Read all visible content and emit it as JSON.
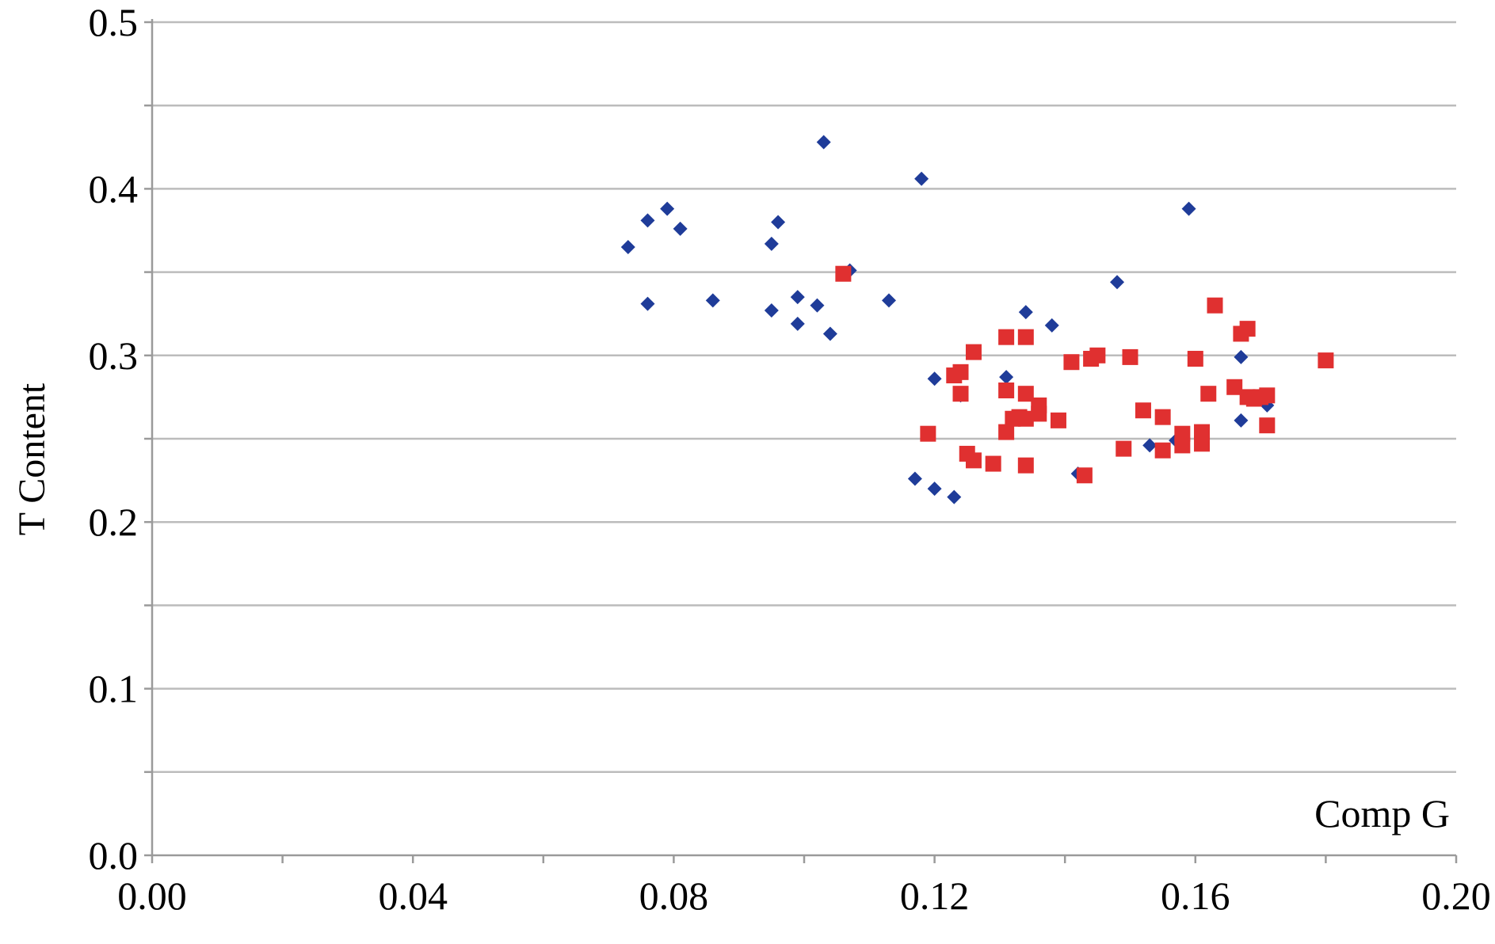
{
  "chart_data": {
    "type": "scatter",
    "title": "",
    "xlabel": "Comp G",
    "ylabel": "T Content",
    "xlim": [
      0.0,
      0.2
    ],
    "ylim": [
      0.0,
      0.5
    ],
    "x_ticks": [
      0.0,
      0.04,
      0.08,
      0.12,
      0.16,
      0.2
    ],
    "x_tick_labels": [
      "0.00",
      "0.04",
      "0.08",
      "0.12",
      "0.16",
      "0.20"
    ],
    "y_ticks": [
      0.0,
      0.1,
      0.2,
      0.3,
      0.4,
      0.5
    ],
    "y_tick_labels": [
      "0.0",
      "0.1",
      "0.2",
      "0.3",
      "0.4",
      "0.5"
    ],
    "grid": true,
    "legend": "none",
    "colors": {
      "series_1": "#1f3c99",
      "series_2": "#e03030",
      "grid": "#bcbcbc",
      "axis": "#9a9a9a"
    },
    "series": [
      {
        "marker": "diamond",
        "color": "#1f3c99",
        "points": [
          [
            0.073,
            0.365
          ],
          [
            0.076,
            0.381
          ],
          [
            0.079,
            0.388
          ],
          [
            0.081,
            0.376
          ],
          [
            0.076,
            0.331
          ],
          [
            0.086,
            0.333
          ],
          [
            0.095,
            0.367
          ],
          [
            0.096,
            0.38
          ],
          [
            0.095,
            0.327
          ],
          [
            0.099,
            0.335
          ],
          [
            0.099,
            0.319
          ],
          [
            0.102,
            0.33
          ],
          [
            0.103,
            0.428
          ],
          [
            0.104,
            0.313
          ],
          [
            0.107,
            0.351
          ],
          [
            0.113,
            0.333
          ],
          [
            0.118,
            0.406
          ],
          [
            0.117,
            0.226
          ],
          [
            0.12,
            0.22
          ],
          [
            0.12,
            0.286
          ],
          [
            0.123,
            0.215
          ],
          [
            0.124,
            0.276
          ],
          [
            0.131,
            0.287
          ],
          [
            0.134,
            0.326
          ],
          [
            0.138,
            0.318
          ],
          [
            0.142,
            0.229
          ],
          [
            0.148,
            0.344
          ],
          [
            0.153,
            0.246
          ],
          [
            0.157,
            0.249
          ],
          [
            0.159,
            0.388
          ],
          [
            0.167,
            0.299
          ],
          [
            0.167,
            0.261
          ],
          [
            0.171,
            0.27
          ]
        ]
      },
      {
        "marker": "square",
        "color": "#e03030",
        "points": [
          [
            0.106,
            0.349
          ],
          [
            0.119,
            0.253
          ],
          [
            0.123,
            0.288
          ],
          [
            0.124,
            0.29
          ],
          [
            0.124,
            0.277
          ],
          [
            0.125,
            0.241
          ],
          [
            0.126,
            0.237
          ],
          [
            0.126,
            0.302
          ],
          [
            0.129,
            0.235
          ],
          [
            0.131,
            0.311
          ],
          [
            0.131,
            0.279
          ],
          [
            0.131,
            0.254
          ],
          [
            0.132,
            0.262
          ],
          [
            0.133,
            0.263
          ],
          [
            0.134,
            0.262
          ],
          [
            0.134,
            0.311
          ],
          [
            0.134,
            0.277
          ],
          [
            0.134,
            0.234
          ],
          [
            0.136,
            0.27
          ],
          [
            0.136,
            0.265
          ],
          [
            0.139,
            0.261
          ],
          [
            0.141,
            0.296
          ],
          [
            0.143,
            0.228
          ],
          [
            0.144,
            0.298
          ],
          [
            0.145,
            0.3
          ],
          [
            0.149,
            0.244
          ],
          [
            0.15,
            0.299
          ],
          [
            0.152,
            0.267
          ],
          [
            0.155,
            0.263
          ],
          [
            0.155,
            0.243
          ],
          [
            0.158,
            0.246
          ],
          [
            0.158,
            0.253
          ],
          [
            0.16,
            0.298
          ],
          [
            0.161,
            0.247
          ],
          [
            0.161,
            0.254
          ],
          [
            0.162,
            0.277
          ],
          [
            0.163,
            0.33
          ],
          [
            0.166,
            0.281
          ],
          [
            0.167,
            0.313
          ],
          [
            0.168,
            0.316
          ],
          [
            0.168,
            0.275
          ],
          [
            0.169,
            0.274
          ],
          [
            0.17,
            0.275
          ],
          [
            0.171,
            0.276
          ],
          [
            0.171,
            0.258
          ],
          [
            0.18,
            0.297
          ]
        ]
      }
    ]
  }
}
